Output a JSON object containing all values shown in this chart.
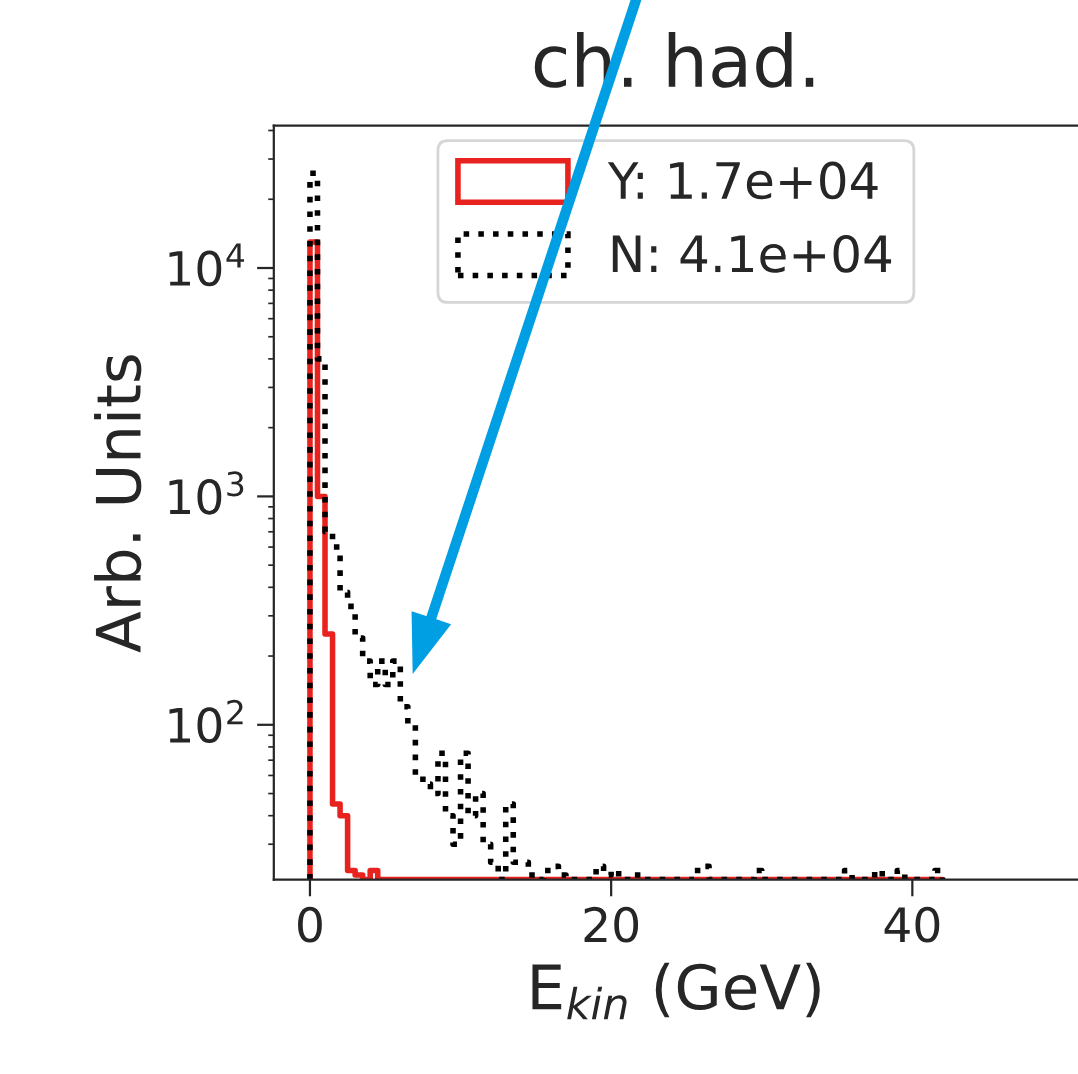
{
  "chart_data": {
    "type": "histogram",
    "title": "ch. had.",
    "xlabel": "E$_{kin}$ (GeV)",
    "ylabel": "Arb. Units",
    "bins": [
      0,
      0.5,
      1,
      1.5,
      2,
      2.5,
      3,
      3.5,
      4,
      4.5,
      5,
      5.5,
      6,
      6.5,
      7,
      7.5,
      8,
      8.5,
      9,
      9.5,
      10,
      10.5,
      11,
      11.5,
      12,
      12.5,
      13,
      13.5,
      14,
      14.5,
      15,
      15.5,
      16,
      16.5,
      17,
      17.5,
      18,
      18.5,
      19,
      19.5,
      20,
      20.5,
      21,
      21.5,
      22,
      22.5,
      23,
      23.5,
      24,
      24.5,
      25,
      25.5,
      26,
      26.5,
      27,
      27.5,
      28,
      28.5,
      29,
      29.5,
      30,
      30.5,
      31,
      31.5,
      32,
      32.5,
      33,
      33.5,
      34,
      34.5,
      35,
      35.5,
      36,
      36.5,
      37,
      37.5,
      38,
      38.5,
      39,
      39.5,
      40,
      40.5,
      41,
      41.5,
      42
    ],
    "series": [
      {
        "name": "Y: 1.7e+04",
        "color": "#e8221e",
        "line_style": "solid",
        "values": [
          13000,
          1000,
          250,
          45,
          40,
          23,
          22,
          null,
          23,
          null,
          null,
          null,
          null,
          null,
          null,
          null,
          null,
          null,
          null,
          null,
          null,
          null,
          null,
          null,
          null,
          null,
          null,
          null,
          null,
          null,
          null,
          null,
          null,
          null,
          null,
          null,
          null,
          null,
          null,
          null,
          null,
          null,
          null,
          null,
          null,
          null,
          null,
          null,
          null,
          null,
          null,
          null,
          null,
          null,
          null,
          null,
          null,
          null,
          null,
          null,
          null,
          null,
          null,
          null,
          null,
          null,
          null,
          null,
          null,
          null,
          null,
          null,
          null,
          null,
          null,
          null,
          null,
          null,
          null,
          null,
          null,
          null,
          null,
          null
        ]
      },
      {
        "name": "N: 4.1e+04",
        "color": "#000000",
        "line_style": "dotted",
        "values": [
          26000,
          4000,
          700,
          600,
          380,
          330,
          240,
          190,
          150,
          190,
          150,
          190,
          120,
          100,
          60,
          55,
          50,
          75,
          40,
          30,
          75,
          40,
          50,
          30,
          25,
          null,
          45,
          25,
          25,
          22,
          null,
          23,
          24,
          22,
          null,
          null,
          null,
          null,
          24,
          22,
          23,
          null,
          null,
          22,
          null,
          null,
          null,
          null,
          null,
          null,
          null,
          23,
          24,
          null,
          null,
          null,
          null,
          null,
          null,
          23,
          null,
          null,
          null,
          null,
          null,
          null,
          null,
          null,
          null,
          null,
          null,
          23,
          null,
          null,
          null,
          23,
          null,
          null,
          23,
          null,
          null,
          null,
          null,
          23
        ]
      }
    ],
    "xlim": [
      -2.4,
      51
    ],
    "xticks": [
      0,
      20,
      40
    ],
    "log": "y",
    "ylim": [
      21,
      42000
    ],
    "yticks": [
      {
        "value": 100,
        "label": "10$^{2}$"
      },
      {
        "value": 1000,
        "label": "10$^{3}$"
      },
      {
        "value": 10000,
        "label": "10$^{4}$"
      }
    ],
    "grid": false,
    "legend": "top"
  }
}
